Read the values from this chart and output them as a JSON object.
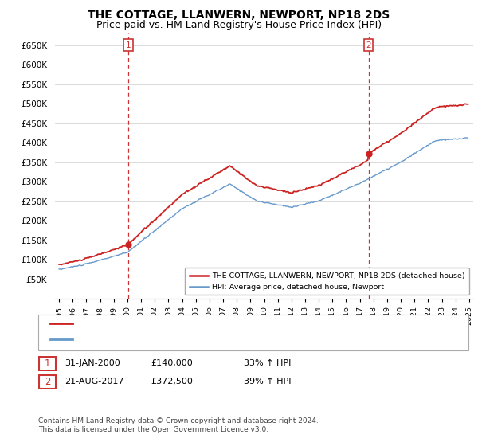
{
  "title": "THE COTTAGE, LLANWERN, NEWPORT, NP18 2DS",
  "subtitle": "Price paid vs. HM Land Registry's House Price Index (HPI)",
  "ylim": [
    0,
    680000
  ],
  "yticks": [
    50000,
    100000,
    150000,
    200000,
    250000,
    300000,
    350000,
    400000,
    450000,
    500000,
    550000,
    600000,
    650000
  ],
  "xlim_left": 1994.7,
  "xlim_right": 2025.3,
  "red_line_color": "#cc2222",
  "blue_line_color": "#6699cc",
  "vline_color": "#cc3333",
  "sale1_date": 2000.08,
  "sale1_price": 140000,
  "sale1_label": "1",
  "sale2_date": 2017.64,
  "sale2_price": 372500,
  "sale2_label": "2",
  "legend_entry1": "THE COTTAGE, LLANWERN, NEWPORT, NP18 2DS (detached house)",
  "legend_entry2": "HPI: Average price, detached house, Newport",
  "table_row1": [
    "1",
    "31-JAN-2000",
    "£140,000",
    "33% ↑ HPI"
  ],
  "table_row2": [
    "2",
    "21-AUG-2017",
    "£372,500",
    "39% ↑ HPI"
  ],
  "footer": "Contains HM Land Registry data © Crown copyright and database right 2024.\nThis data is licensed under the Open Government Licence v3.0.",
  "background_color": "#ffffff",
  "grid_color": "#cccccc",
  "title_fontsize": 10,
  "subtitle_fontsize": 9
}
